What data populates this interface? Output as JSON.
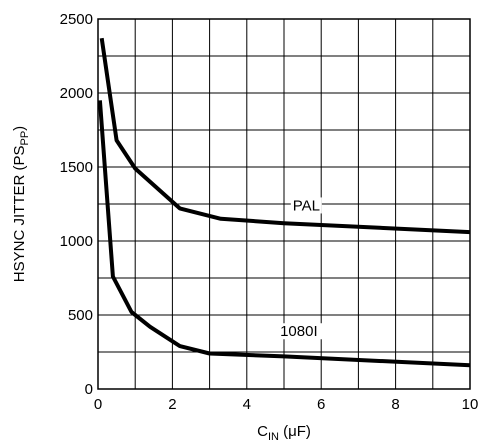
{
  "chart_data": {
    "type": "line",
    "title": "",
    "xlabel": {
      "base": "C",
      "sub": "IN",
      "rest": " (μF)"
    },
    "ylabel": {
      "base": "HSYNC JITTER (PS",
      "sub": "PP",
      "rest": ")"
    },
    "xlim": [
      0,
      10
    ],
    "ylim": [
      0,
      2500
    ],
    "xticks": [
      0,
      2,
      4,
      6,
      8,
      10
    ],
    "yticks": [
      0,
      500,
      1000,
      1500,
      2000,
      2500
    ],
    "grid": true,
    "grid_x_step": 1,
    "grid_y_step": 250,
    "series": [
      {
        "name": "PAL",
        "x": [
          0.1,
          0.5,
          1.0,
          2.2,
          3.3,
          5.0,
          10.0
        ],
        "y": [
          2370,
          1680,
          1490,
          1220,
          1150,
          1120,
          1060
        ]
      },
      {
        "name": "1080I",
        "x": [
          0.05,
          0.4,
          0.9,
          1.4,
          2.2,
          3.0,
          5.0,
          10.0
        ],
        "y": [
          1950,
          760,
          520,
          420,
          290,
          240,
          220,
          160
        ]
      }
    ],
    "colors": {
      "line": "#000000",
      "grid": "#000000"
    }
  }
}
